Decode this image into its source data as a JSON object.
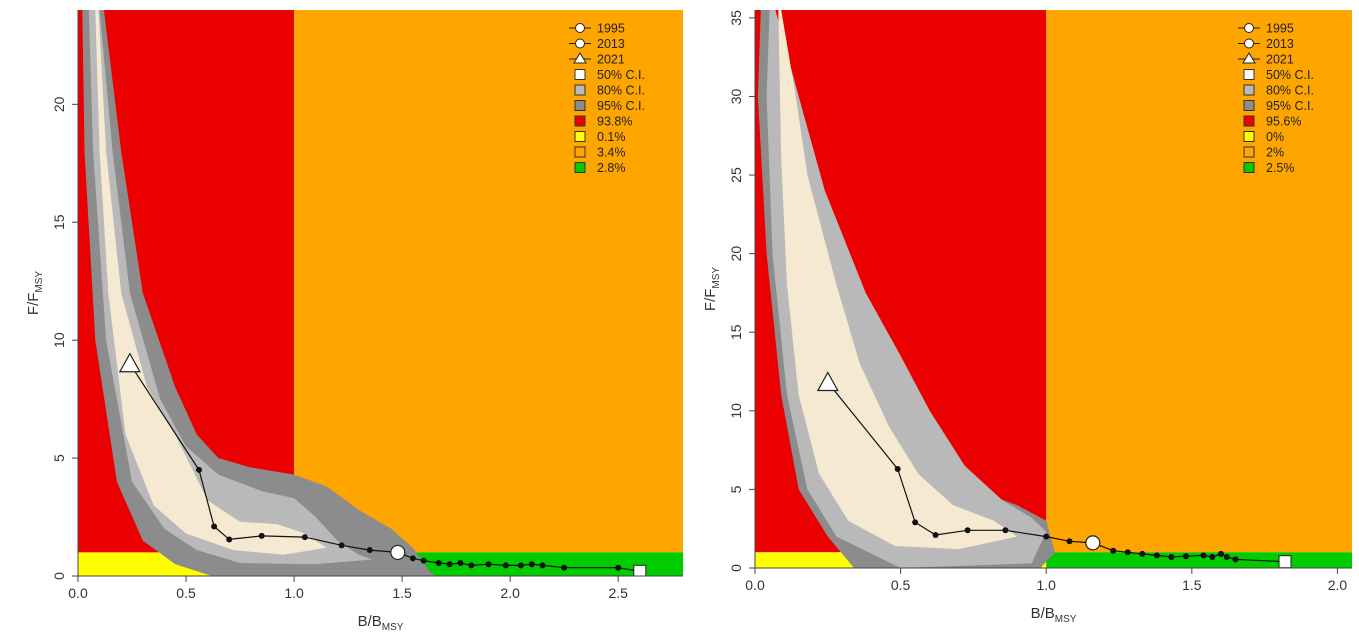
{
  "colors": {
    "red": "#ea0000",
    "orange": "#ffa500",
    "yellow": "#ffff00",
    "green": "#00cc00",
    "ci50": "#f5e9d2",
    "ci80": "#b9b9b9",
    "ci95": "#8c8c8c",
    "line": "#111111"
  },
  "chart_data": [
    {
      "type": "scatter",
      "subtype": "kobe-plot",
      "xlabel": "B/B",
      "xlabel_sub": "MSY",
      "ylabel": "F/F",
      "ylabel_sub": "MSY",
      "xlim": [
        0,
        2.8
      ],
      "ylim": [
        0,
        24
      ],
      "xticks": [
        "0.0",
        "0.5",
        "1.0",
        "1.5",
        "2.0",
        "2.5"
      ],
      "xtick_values": [
        0,
        0.5,
        1.0,
        1.5,
        2.0,
        2.5
      ],
      "yticks": [
        "0",
        "5",
        "10",
        "15",
        "20"
      ],
      "ytick_values": [
        0,
        5,
        10,
        15,
        20
      ],
      "legend_position": "top-right",
      "legend": [
        "1995",
        "2013",
        "2021",
        "50% C.I.",
        "80% C.I.",
        "95% C.I.",
        "93.8%",
        "0.1%",
        "3.4%",
        "2.8%"
      ],
      "quadrants": {
        "red": "93.8%",
        "yellow": "0.1%",
        "orange": "3.4%",
        "green": "2.8%"
      },
      "trajectory": [
        [
          2.6,
          0.2
        ],
        [
          2.5,
          0.35
        ],
        [
          2.25,
          0.35
        ],
        [
          2.15,
          0.45
        ],
        [
          2.1,
          0.5
        ],
        [
          2.05,
          0.45
        ],
        [
          1.98,
          0.45
        ],
        [
          1.9,
          0.5
        ],
        [
          1.82,
          0.45
        ],
        [
          1.77,
          0.55
        ],
        [
          1.72,
          0.5
        ],
        [
          1.67,
          0.55
        ],
        [
          1.6,
          0.65
        ],
        [
          1.55,
          0.75
        ],
        [
          1.48,
          1.0
        ],
        [
          1.35,
          1.1
        ],
        [
          1.22,
          1.3
        ],
        [
          1.05,
          1.65
        ],
        [
          0.85,
          1.7
        ],
        [
          0.7,
          1.55
        ],
        [
          0.63,
          2.1
        ],
        [
          0.56,
          4.5
        ],
        [
          0.24,
          9.0
        ]
      ],
      "years_marked": {
        "1995": [
          2.6,
          0.2
        ],
        "2013": [
          1.48,
          1.0
        ],
        "2021": [
          0.24,
          9.0
        ]
      },
      "ci95": [
        [
          0.02,
          24
        ],
        [
          0.12,
          24
        ],
        [
          0.2,
          18
        ],
        [
          0.3,
          12
        ],
        [
          0.45,
          8
        ],
        [
          0.55,
          6
        ],
        [
          0.65,
          5
        ],
        [
          0.8,
          4.6
        ],
        [
          1.0,
          4.3
        ],
        [
          1.15,
          3.8
        ],
        [
          1.3,
          2.8
        ],
        [
          1.45,
          2.0
        ],
        [
          1.55,
          1.2
        ],
        [
          1.62,
          0.3
        ],
        [
          1.65,
          0
        ],
        [
          0.62,
          0
        ],
        [
          0.45,
          0.5
        ],
        [
          0.3,
          1.5
        ],
        [
          0.18,
          4
        ],
        [
          0.08,
          10
        ],
        [
          0.03,
          18
        ]
      ],
      "ci80": [
        [
          0.05,
          24
        ],
        [
          0.1,
          24
        ],
        [
          0.16,
          18
        ],
        [
          0.24,
          12
        ],
        [
          0.38,
          7.5
        ],
        [
          0.5,
          5.5
        ],
        [
          0.65,
          4.3
        ],
        [
          0.85,
          3.6
        ],
        [
          1.0,
          3.3
        ],
        [
          1.1,
          2.5
        ],
        [
          1.2,
          1.5
        ],
        [
          1.3,
          0.9
        ],
        [
          1.36,
          0.7
        ],
        [
          1.1,
          0.5
        ],
        [
          0.75,
          0.55
        ],
        [
          0.55,
          1.1
        ],
        [
          0.4,
          2.0
        ],
        [
          0.25,
          4
        ],
        [
          0.13,
          10
        ],
        [
          0.07,
          18
        ]
      ],
      "ci50": [
        [
          0.08,
          24
        ],
        [
          0.095,
          24
        ],
        [
          0.13,
          18
        ],
        [
          0.2,
          12
        ],
        [
          0.32,
          8
        ],
        [
          0.45,
          6
        ],
        [
          0.6,
          3.2
        ],
        [
          0.75,
          2.3
        ],
        [
          0.92,
          2.2
        ],
        [
          1.05,
          1.8
        ],
        [
          1.15,
          1.2
        ],
        [
          0.95,
          0.9
        ],
        [
          0.72,
          1.1
        ],
        [
          0.5,
          1.8
        ],
        [
          0.35,
          3
        ],
        [
          0.22,
          6
        ],
        [
          0.14,
          12
        ],
        [
          0.1,
          18
        ]
      ]
    },
    {
      "type": "scatter",
      "subtype": "kobe-plot",
      "xlabel": "B/B",
      "xlabel_sub": "MSY",
      "ylabel": "F/F",
      "ylabel_sub": "MSY",
      "xlim": [
        0,
        2.05
      ],
      "ylim": [
        0,
        35.5
      ],
      "xticks": [
        "0.0",
        "0.5",
        "1.0",
        "1.5",
        "2.0"
      ],
      "xtick_values": [
        0,
        0.5,
        1.0,
        1.5,
        2.0
      ],
      "yticks": [
        "0",
        "5",
        "10",
        "15",
        "20",
        "25",
        "30",
        "35"
      ],
      "ytick_values": [
        0,
        5,
        10,
        15,
        20,
        25,
        30,
        35
      ],
      "legend_position": "top-right",
      "legend": [
        "1995",
        "2013",
        "2021",
        "50% C.I.",
        "80% C.I.",
        "95% C.I.",
        "95.6%",
        "0%",
        "2%",
        "2.5%"
      ],
      "quadrants": {
        "red": "95.6%",
        "yellow": "0%",
        "orange": "2%",
        "green": "2.5%"
      },
      "trajectory": [
        [
          1.82,
          0.4
        ],
        [
          1.65,
          0.55
        ],
        [
          1.62,
          0.7
        ],
        [
          1.6,
          0.9
        ],
        [
          1.57,
          0.7
        ],
        [
          1.54,
          0.8
        ],
        [
          1.48,
          0.75
        ],
        [
          1.43,
          0.7
        ],
        [
          1.38,
          0.8
        ],
        [
          1.33,
          0.9
        ],
        [
          1.28,
          1.0
        ],
        [
          1.23,
          1.1
        ],
        [
          1.16,
          1.6
        ],
        [
          1.08,
          1.7
        ],
        [
          1.0,
          2.0
        ],
        [
          0.86,
          2.4
        ],
        [
          0.73,
          2.4
        ],
        [
          0.62,
          2.1
        ],
        [
          0.55,
          2.9
        ],
        [
          0.49,
          6.3
        ],
        [
          0.25,
          11.8
        ]
      ],
      "years_marked": {
        "1995": [
          1.82,
          0.4
        ],
        "2013": [
          1.16,
          1.6
        ],
        "2021": [
          0.25,
          11.8
        ]
      },
      "ci95": [
        [
          0.02,
          35.5
        ],
        [
          0.06,
          35.5
        ],
        [
          0.13,
          30
        ],
        [
          0.22,
          22
        ],
        [
          0.35,
          15
        ],
        [
          0.48,
          11
        ],
        [
          0.6,
          8
        ],
        [
          0.72,
          5.2
        ],
        [
          0.9,
          4.0
        ],
        [
          1.0,
          3.0
        ],
        [
          1.03,
          1.0
        ],
        [
          0.98,
          0
        ],
        [
          0.34,
          0
        ],
        [
          0.25,
          2
        ],
        [
          0.15,
          5
        ],
        [
          0.09,
          11
        ],
        [
          0.04,
          20
        ],
        [
          0.01,
          30
        ]
      ],
      "ci80": [
        [
          0.05,
          35.5
        ],
        [
          0.07,
          35.5
        ],
        [
          0.15,
          30
        ],
        [
          0.24,
          24
        ],
        [
          0.38,
          17.5
        ],
        [
          0.5,
          13.5
        ],
        [
          0.6,
          10
        ],
        [
          0.72,
          6.5
        ],
        [
          0.85,
          4.3
        ],
        [
          0.95,
          3.2
        ],
        [
          1.0,
          2.3
        ],
        [
          0.95,
          0.3
        ],
        [
          0.5,
          0
        ],
        [
          0.28,
          2
        ],
        [
          0.18,
          5
        ],
        [
          0.11,
          11
        ],
        [
          0.06,
          20
        ],
        [
          0.04,
          30
        ]
      ],
      "ci50": [
        [
          0.08,
          35.5
        ],
        [
          0.09,
          35.5
        ],
        [
          0.14,
          30
        ],
        [
          0.18,
          25
        ],
        [
          0.28,
          18
        ],
        [
          0.36,
          13
        ],
        [
          0.46,
          9
        ],
        [
          0.56,
          6
        ],
        [
          0.68,
          4
        ],
        [
          0.82,
          3
        ],
        [
          0.9,
          2.0
        ],
        [
          0.7,
          1.2
        ],
        [
          0.48,
          1.4
        ],
        [
          0.32,
          3
        ],
        [
          0.22,
          6
        ],
        [
          0.15,
          11
        ],
        [
          0.11,
          18
        ],
        [
          0.09,
          26
        ]
      ]
    }
  ]
}
